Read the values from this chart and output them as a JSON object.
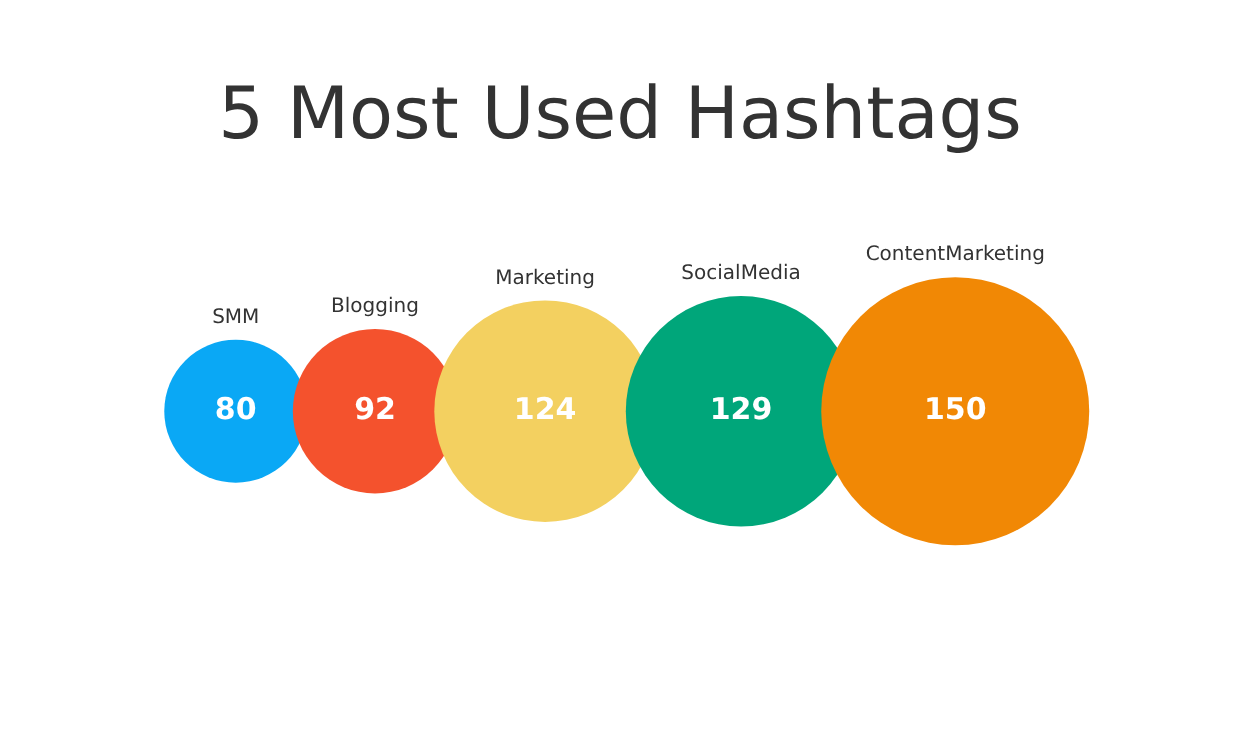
{
  "chart_data": {
    "type": "other",
    "title": "5 Most Used Hashtags",
    "categories": [
      "SMM",
      "Blogging",
      "Marketing",
      "SocialMedia",
      "ContentMarketing"
    ],
    "values": [
      80,
      92,
      124,
      129,
      150
    ],
    "colors": [
      "#0aa8f5",
      "#f4522d",
      "#f3d060",
      "#00a67a",
      "#f18805"
    ],
    "data_labels": true
  }
}
